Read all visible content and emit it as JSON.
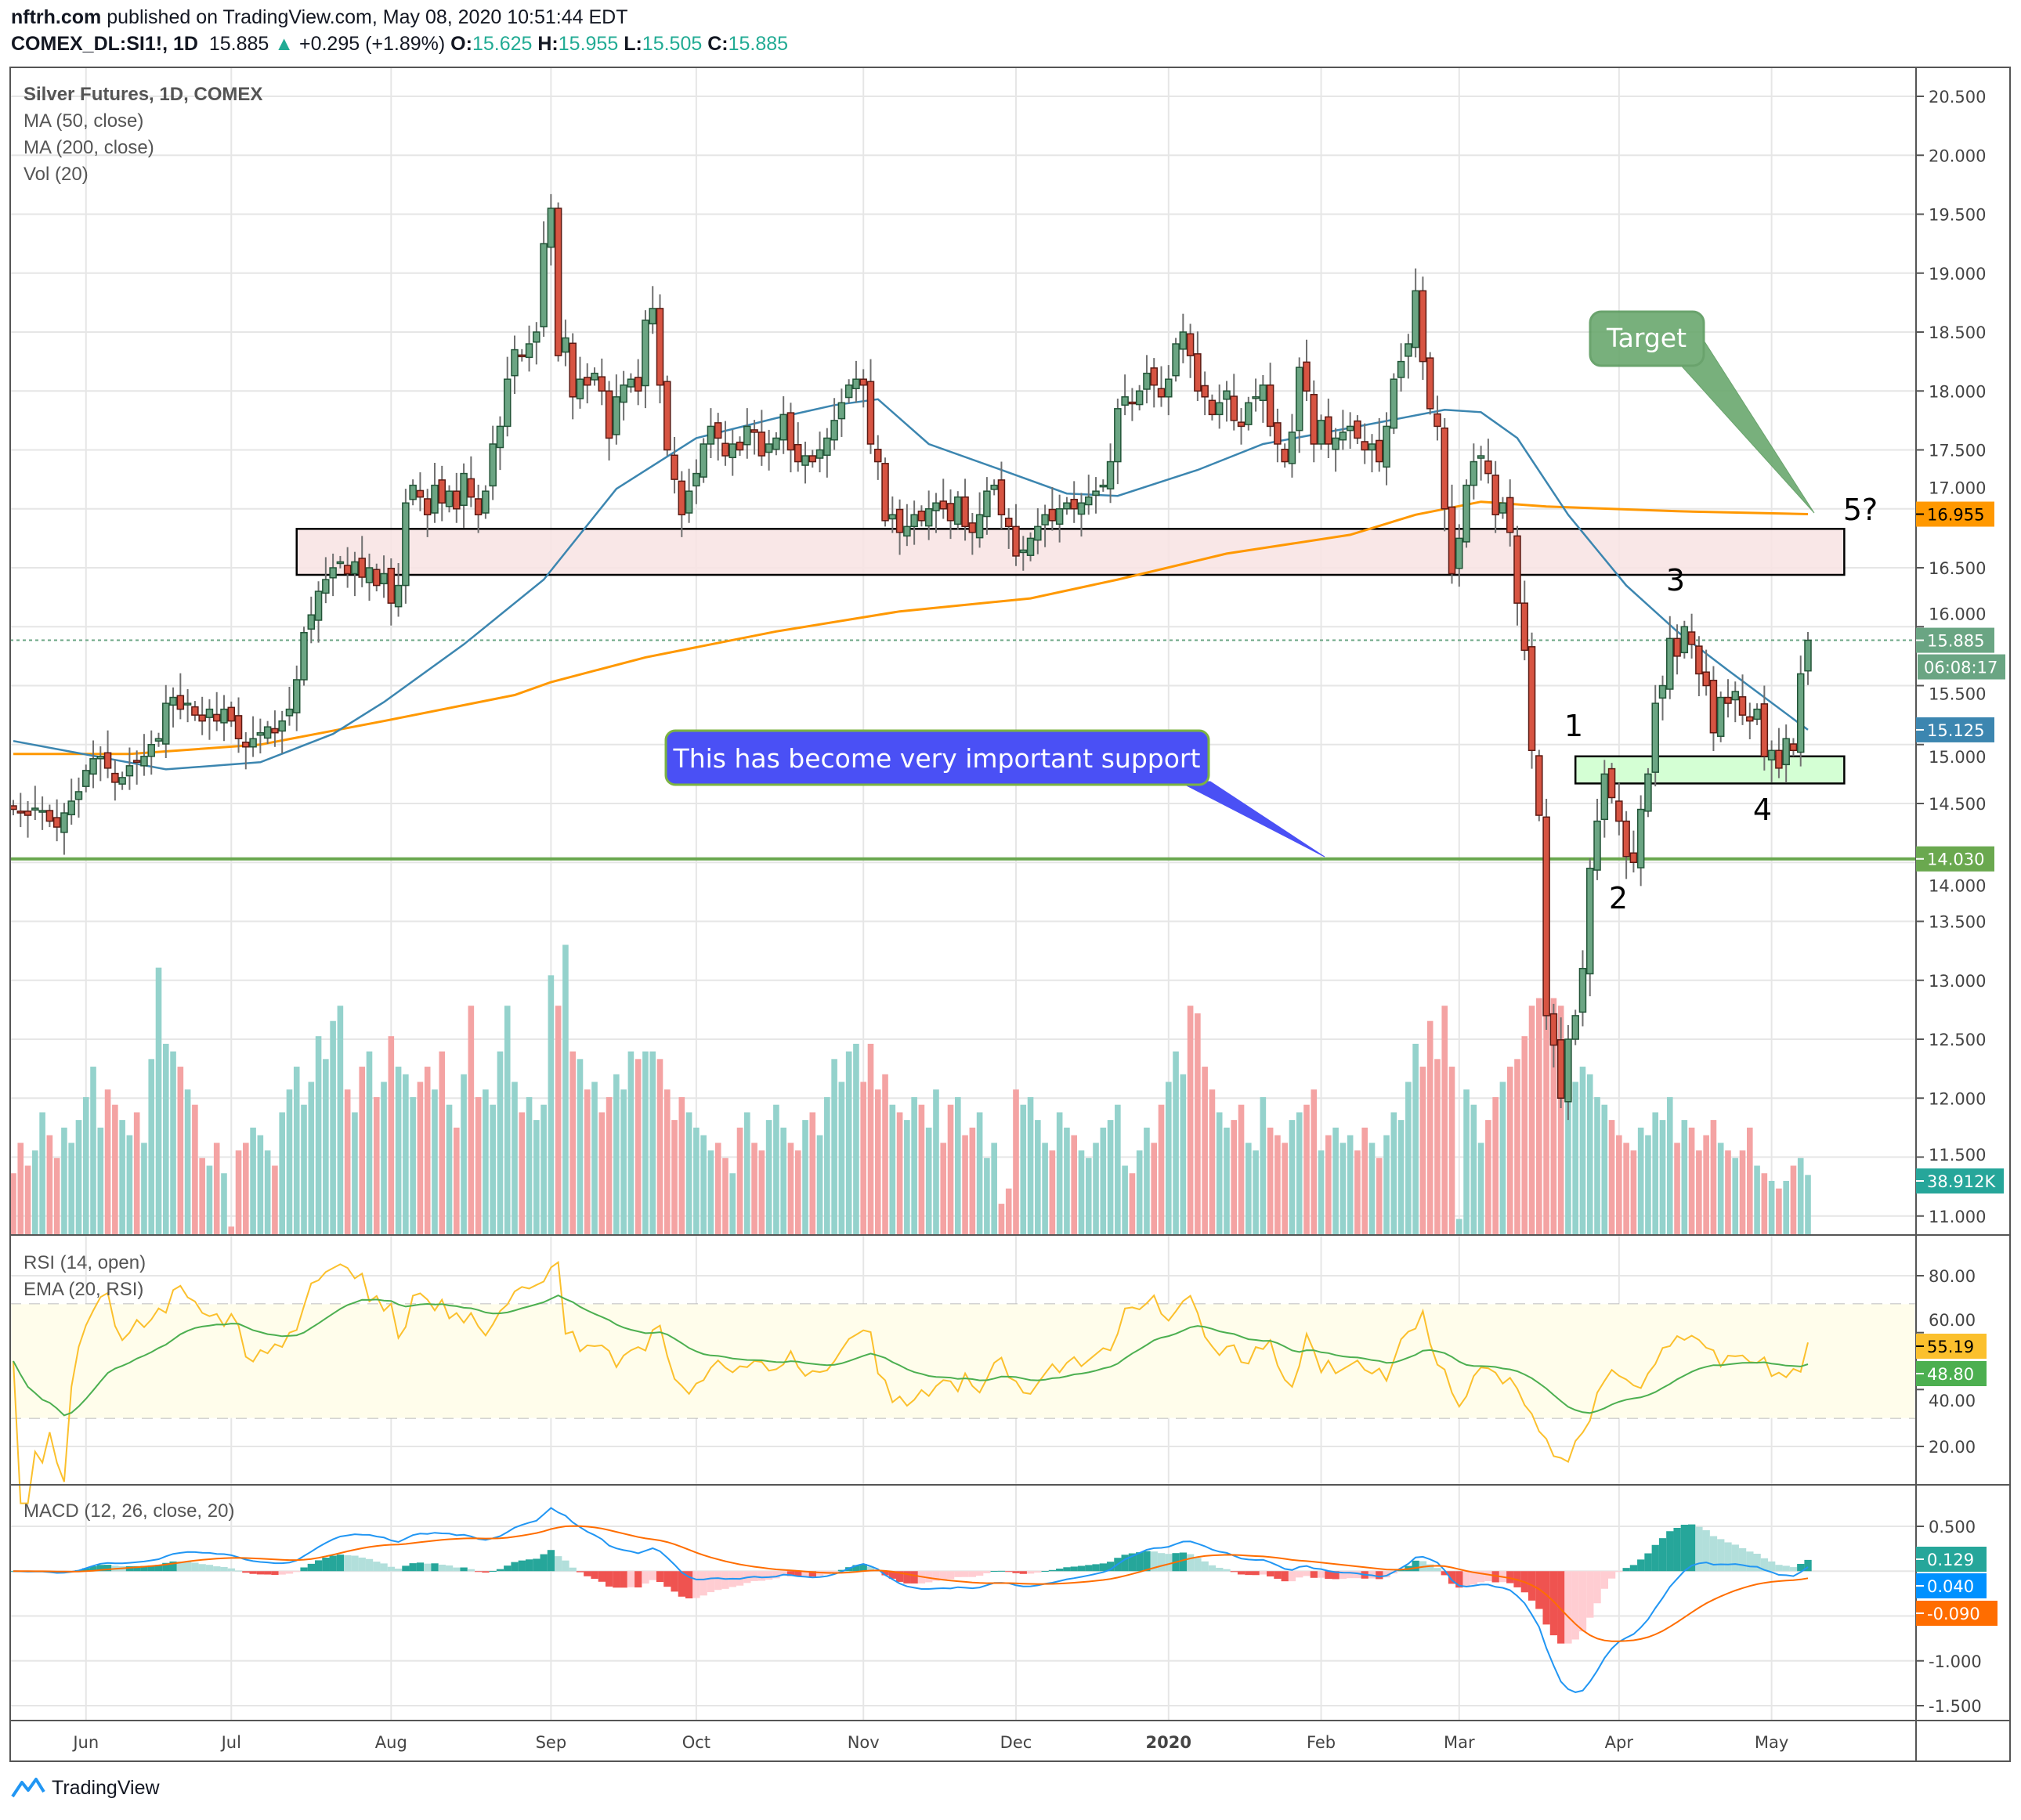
{
  "header": {
    "author": "nftrh.com",
    "published": "published on TradingView.com, May 08, 2020 10:51:44 EDT",
    "symbol": "COMEX_DL:SI1!, 1D",
    "last": "15.885",
    "change": "+0.295 (+1.89%)",
    "o_label": "O:",
    "o": "15.625",
    "h_label": "H:",
    "h": "15.955",
    "l_label": "L:",
    "l": "15.505",
    "c_label": "C:",
    "c": "15.885"
  },
  "legend": {
    "title": "Silver Futures, 1D, COMEX",
    "ma50": "MA (50, close)",
    "ma200": "MA (200, close)",
    "vol": "Vol (20)",
    "rsi": "RSI (14, open)",
    "rsi_ema": "EMA (20, RSI)",
    "macd": "MACD (12, 26, close, 20)"
  },
  "annotations": {
    "support_callout": "This has become very important support",
    "target": "Target",
    "wave1": "1",
    "wave2": "2",
    "wave3": "3",
    "wave4": "4",
    "wave5": "5?"
  },
  "price_labels": {
    "ma200": "16.955",
    "last": "15.885",
    "countdown": "06:08:17",
    "ma50": "15.125",
    "support": "14.030",
    "volume": "38.912K",
    "rsi": "55.19",
    "rsi_ema": "48.80",
    "macd_hist": "0.129",
    "macd": "0.040",
    "macd_signal": "-0.090"
  },
  "footer": {
    "logo": "TradingView"
  },
  "colors": {
    "up": "#6ba583",
    "up_border": "#225437",
    "down": "#d75442",
    "down_border": "#5b1a13",
    "vol_up": "#94d2cc",
    "vol_down": "#f4a3a3",
    "ma50": "#3c86b0",
    "ma200": "#ff9800",
    "support_line": "#6aa84f",
    "rsi": "#fbc02d",
    "rsi_ema": "#4caf50",
    "macd": "#2196f3",
    "macd_signal": "#ff6d00",
    "resistance_zone": "#f8e3e3",
    "support_zone": "#ccffcc",
    "callout_blue": "#4a50f5",
    "callout_green": "#6aa86e"
  },
  "chart_data": {
    "type": "candlestick",
    "title": "Silver Futures, 1D, COMEX",
    "y_ticks": [
      "20.500",
      "20.000",
      "19.500",
      "19.000",
      "18.500",
      "18.000",
      "17.500",
      "17.000",
      "16.500",
      "16.000",
      "15.500",
      "15.000",
      "14.500",
      "14.000",
      "13.500",
      "13.000",
      "12.500",
      "12.000",
      "11.500",
      "11.000"
    ],
    "ylim": [
      10.8,
      20.8
    ],
    "x_ticks": [
      {
        "label": "Jun",
        "bar": 10
      },
      {
        "label": "Jul",
        "bar": 30
      },
      {
        "label": "Aug",
        "bar": 52
      },
      {
        "label": "Sep",
        "bar": 74
      },
      {
        "label": "Oct",
        "bar": 94
      },
      {
        "label": "Nov",
        "bar": 117
      },
      {
        "label": "Dec",
        "bar": 138
      },
      {
        "label": "2020",
        "bar": 159,
        "bold": true
      },
      {
        "label": "Feb",
        "bar": 180
      },
      {
        "label": "Mar",
        "bar": 199
      },
      {
        "label": "Apr",
        "bar": 221
      },
      {
        "label": "May",
        "bar": 242
      }
    ],
    "last_bar": {
      "open": 15.625,
      "high": 15.955,
      "low": 15.505,
      "close": 15.885
    },
    "close": [
      14.45,
      14.42,
      14.4,
      14.46,
      14.44,
      14.35,
      14.3,
      14.42,
      14.52,
      14.6,
      14.78,
      14.88,
      14.9,
      14.8,
      14.68,
      14.72,
      14.82,
      14.85,
      14.9,
      15.0,
      15.05,
      15.35,
      15.4,
      15.3,
      15.35,
      15.25,
      15.2,
      15.3,
      15.2,
      15.3,
      15.2,
      15.05,
      14.98,
      15.05,
      15.1,
      15.15,
      15.1,
      15.2,
      15.3,
      15.55,
      15.95,
      16.1,
      16.3,
      16.4,
      16.5,
      16.55,
      16.45,
      16.55,
      16.42,
      16.5,
      16.35,
      16.45,
      16.2,
      16.35,
      17.05,
      17.2,
      17.1,
      16.95,
      17.2,
      17.05,
      17.15,
      17.0,
      17.3,
      17.1,
      16.95,
      17.15,
      17.55,
      17.7,
      18.1,
      18.35,
      18.3,
      18.4,
      18.5,
      19.25,
      19.55,
      18.3,
      18.45,
      17.95,
      18.1,
      18.05,
      18.15,
      18.0,
      17.6,
      17.95,
      18.05,
      18.1,
      18.0,
      18.6,
      18.7,
      18.05,
      17.5,
      17.25,
      16.95,
      17.15,
      17.3,
      17.55,
      17.7,
      17.6,
      17.45,
      17.55,
      17.5,
      17.7,
      17.65,
      17.45,
      17.55,
      17.6,
      17.8,
      17.5,
      17.4,
      17.45,
      17.4,
      17.5,
      17.6,
      17.75,
      17.9,
      18.05,
      18.1,
      18.05,
      17.55,
      17.4,
      16.9,
      16.95,
      16.8,
      16.85,
      16.95,
      16.9,
      17.0,
      17.05,
      17.0,
      16.9,
      17.1,
      16.85,
      16.8,
      16.95,
      17.15,
      17.2,
      16.95,
      16.85,
      16.6,
      16.65,
      16.75,
      16.85,
      16.95,
      16.9,
      17.0,
      17.05,
      17.0,
      17.05,
      17.1,
      17.15,
      17.2,
      17.4,
      17.85,
      17.95,
      17.9,
      18.0,
      18.15,
      18.05,
      17.95,
      18.1,
      18.4,
      18.5,
      18.3,
      18.0,
      17.95,
      17.8,
      17.9,
      18.0,
      17.75,
      17.7,
      17.9,
      17.95,
      18.05,
      17.7,
      17.55,
      17.4,
      17.65,
      18.2,
      18.0,
      17.55,
      17.75,
      17.55,
      17.6,
      17.65,
      17.7,
      17.6,
      17.5,
      17.55,
      17.4,
      17.7,
      18.1,
      18.25,
      18.4,
      18.85,
      18.25,
      17.85,
      17.7,
      17.0,
      16.45,
      16.75,
      17.2,
      17.4,
      17.45,
      17.3,
      16.95,
      17.05,
      16.8,
      16.2,
      15.8,
      14.95,
      14.4,
      12.7,
      12.45,
      12.0,
      12.5,
      12.7,
      13.1,
      13.95,
      14.35,
      14.75,
      14.55,
      14.35,
      14.05,
      14.0,
      14.45,
      14.75,
      15.35,
      15.5,
      15.9,
      15.75,
      16.0,
      15.85,
      15.6,
      15.5,
      15.1,
      15.4,
      15.35,
      15.45,
      15.25,
      15.2,
      15.3,
      14.9,
      14.95,
      14.8,
      15.05,
      14.95,
      15.6,
      15.885
    ],
    "volume_k": [
      40,
      60,
      45,
      55,
      80,
      65,
      50,
      70,
      60,
      75,
      90,
      110,
      70,
      95,
      85,
      75,
      65,
      80,
      60,
      115,
      175,
      125,
      120,
      110,
      95,
      85,
      50,
      45,
      60,
      40,
      5,
      55,
      60,
      70,
      65,
      55,
      45,
      80,
      95,
      110,
      85,
      100,
      130,
      115,
      140,
      150,
      95,
      80,
      110,
      120,
      90,
      100,
      130,
      110,
      105,
      90,
      100,
      110,
      95,
      120,
      85,
      70,
      105,
      150,
      90,
      95,
      85,
      120,
      150,
      100,
      80,
      90,
      75,
      85,
      170,
      150,
      190,
      120,
      115,
      95,
      100,
      80,
      90,
      105,
      95,
      120,
      115,
      120,
      120,
      115,
      95,
      75,
      90,
      80,
      70,
      65,
      55,
      60,
      50,
      40,
      70,
      80,
      60,
      55,
      75,
      85,
      70,
      60,
      55,
      75,
      80,
      65,
      90,
      115,
      100,
      120,
      125,
      100,
      125,
      95,
      105,
      85,
      80,
      75,
      90,
      85,
      70,
      95,
      60,
      85,
      90,
      65,
      70,
      80,
      50,
      60,
      20,
      30,
      95,
      85,
      90,
      75,
      60,
      55,
      80,
      70,
      65,
      55,
      50,
      60,
      70,
      75,
      85,
      45,
      40,
      55,
      70,
      60,
      85,
      100,
      120,
      105,
      150,
      145,
      110,
      95,
      80,
      70,
      75,
      85,
      60,
      55,
      90,
      70,
      65,
      60,
      75,
      80,
      85,
      95,
      55,
      65,
      70,
      60,
      65,
      55,
      70,
      60,
      50,
      65,
      80,
      75,
      100,
      125,
      110,
      140,
      115,
      150,
      110,
      10,
      95,
      85,
      60,
      75,
      90,
      100,
      110,
      115,
      130,
      150,
      155,
      170,
      155,
      150,
      120,
      100,
      110,
      105,
      90,
      85,
      75,
      65,
      60,
      55,
      70,
      65,
      80,
      75,
      90,
      60,
      75,
      70,
      55,
      65,
      75,
      60,
      55,
      50,
      55,
      70,
      45,
      40,
      35,
      30,
      35,
      45,
      50,
      38.912
    ],
    "ma50": [
      [
        0,
        15.03
      ],
      [
        21,
        14.79
      ],
      [
        34,
        14.85
      ],
      [
        44,
        15.09
      ],
      [
        51,
        15.36
      ],
      [
        62,
        15.85
      ],
      [
        73,
        16.4
      ],
      [
        83,
        17.17
      ],
      [
        94,
        17.6
      ],
      [
        105,
        17.77
      ],
      [
        113,
        17.88
      ],
      [
        119,
        17.93
      ],
      [
        126,
        17.55
      ],
      [
        136,
        17.33
      ],
      [
        145,
        17.13
      ],
      [
        152,
        17.11
      ],
      [
        163,
        17.33
      ],
      [
        172,
        17.55
      ],
      [
        186,
        17.71
      ],
      [
        197,
        17.84
      ],
      [
        202,
        17.82
      ],
      [
        207,
        17.6
      ],
      [
        214,
        16.95
      ],
      [
        222,
        16.35
      ],
      [
        229,
        15.96
      ],
      [
        236,
        15.63
      ],
      [
        247,
        15.125
      ]
    ],
    "ma200": [
      [
        0,
        14.92
      ],
      [
        16,
        14.92
      ],
      [
        34,
        15.0
      ],
      [
        51,
        15.2
      ],
      [
        69,
        15.42
      ],
      [
        74,
        15.53
      ],
      [
        87,
        15.74
      ],
      [
        105,
        15.96
      ],
      [
        122,
        16.13
      ],
      [
        140,
        16.24
      ],
      [
        152,
        16.4
      ],
      [
        167,
        16.62
      ],
      [
        184,
        16.78
      ],
      [
        193,
        16.95
      ],
      [
        202,
        17.06
      ],
      [
        211,
        17.02
      ],
      [
        229,
        16.98
      ],
      [
        247,
        16.955
      ]
    ],
    "resistance_zone": {
      "from_bar": 39,
      "to_bar": 252,
      "low": 16.44,
      "high": 16.83
    },
    "support_zone": {
      "from_bar": 215,
      "to_bar": 252,
      "low": 14.67,
      "high": 14.9
    },
    "support_line": 14.03,
    "rsi": {
      "ticks": [
        "80.00",
        "60.00",
        "40.00",
        "20.00"
      ],
      "upper_band": 70,
      "lower_band": 30,
      "ylim": [
        8,
        92
      ]
    },
    "macd": {
      "ticks": [
        "0.500",
        "-1.000",
        "-1.500"
      ],
      "ylim": [
        -1.7,
        0.8
      ]
    }
  }
}
